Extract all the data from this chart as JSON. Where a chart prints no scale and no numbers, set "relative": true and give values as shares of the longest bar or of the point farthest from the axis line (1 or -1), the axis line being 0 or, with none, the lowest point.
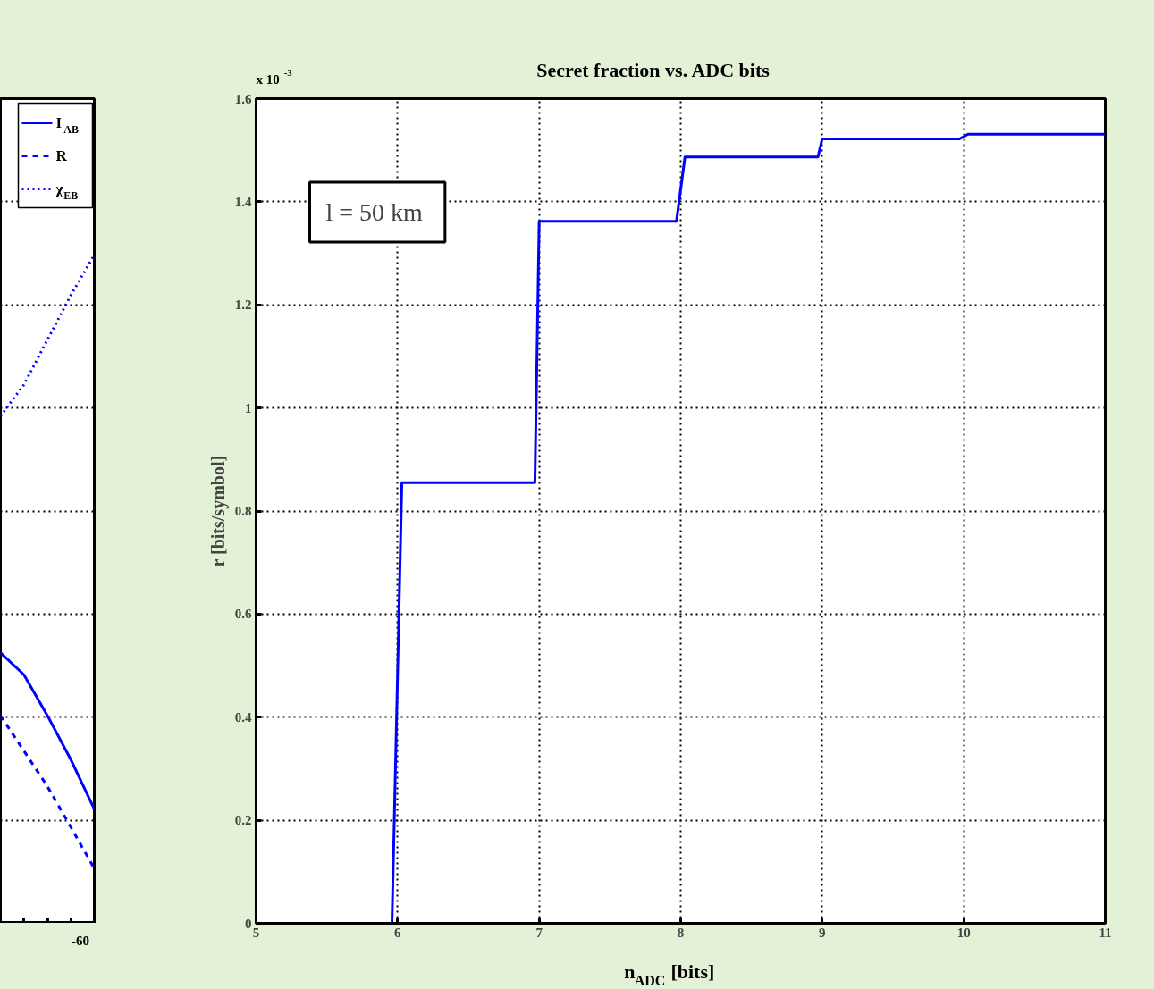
{
  "chart_data": [
    {
      "type": "line",
      "relative": true,
      "categories": [
        null,
        null,
        null,
        null,
        null
      ],
      "legend": "top right",
      "grid": "y",
      "annotations": [
        "-60"
      ],
      "series": [
        {
          "name": "I$_{AB}$",
          "color": "#0000ff",
          "line_style": "solid",
          "values": [
            0.405,
            0.372,
            0.311,
            0.245,
            0.171
          ]
        },
        {
          "name": "R",
          "color": "#0000ff",
          "line_style": "dashed",
          "values": [
            0.311,
            0.258,
            0.205,
            0.144,
            0.082
          ]
        },
        {
          "name": "χ$_{EB}$",
          "color": "#0000ff",
          "line_style": "dotted",
          "values": [
            0.759,
            0.806,
            0.873,
            0.94,
            1.0
          ]
        }
      ]
    },
    {
      "type": "line",
      "title": "Secret fraction vs. ADC bits",
      "xlabel": "n$_{ADC}$ [bits]",
      "ylabel": "r [bits/symbol]",
      "grid": true,
      "legend": false,
      "annotations": [
        "x 10$^{-3}$",
        "l  = 50 km"
      ],
      "xlim": [
        5,
        11
      ],
      "xticks": [
        5,
        6,
        7,
        8,
        9,
        10,
        11
      ],
      "ylim": [
        0,
        1.6
      ],
      "yticks": [
        0,
        0.2,
        0.4,
        0.6,
        0.8,
        1,
        1.2,
        1.4,
        1.6
      ],
      "series": [
        {
          "color": "#0000ff",
          "line_style": "solid",
          "x": [
            5,
            5.96,
            6.03,
            6.97,
            7.0,
            7.97,
            8.03,
            8.97,
            9.0,
            9.97,
            10.03,
            11
          ],
          "values": [
            0,
            0,
            0.855,
            0.855,
            1.362,
            1.362,
            1.487,
            1.487,
            1.522,
            1.522,
            1.531,
            1.531
          ]
        }
      ]
    }
  ]
}
